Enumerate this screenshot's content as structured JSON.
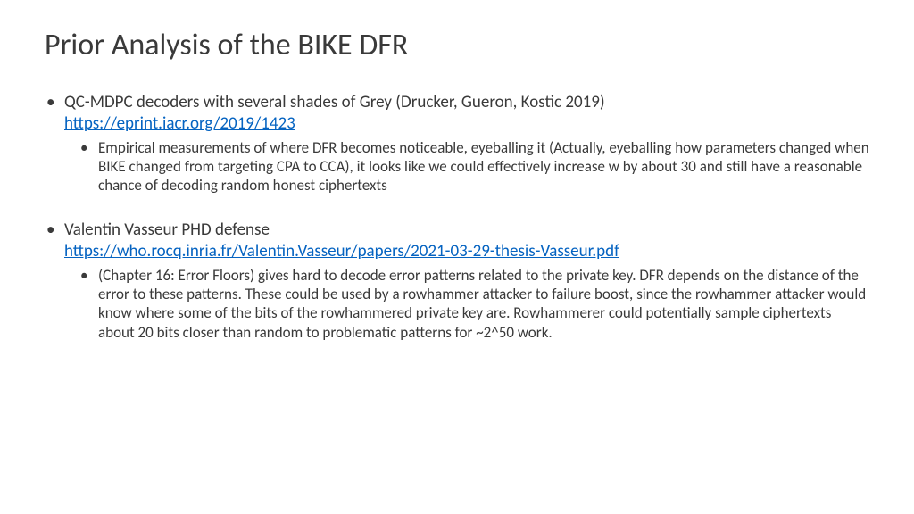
{
  "title": "Prior Analysis of the BIKE DFR",
  "bullets": [
    {
      "intro": "QC-MDPC decoders with several shades of Grey (Drucker, Gueron, Kostic 2019) ",
      "link": "https://eprint.iacr.org/2019/1423",
      "sub": "Empirical measurements of where DFR becomes noticeable, eyeballing it (Actually, eyeballing how parameters changed when BIKE changed from targeting CPA to CCA), it looks like we could effectively increase w by about 30 and still have a reasonable chance of decoding random honest ciphertexts"
    },
    {
      "intro": "Valentin Vasseur PHD defense ",
      "link": "https://who.rocq.inria.fr/Valentin.Vasseur/papers/2021-03-29-thesis-Vasseur.pdf",
      "sub": "(Chapter 16: Error Floors) gives hard to decode error patterns related to the private key. DFR depends on the distance of the error to these patterns. These could be used by a rowhammer attacker to failure boost, since the rowhammer attacker would know where some of the bits of the rowhammered private key are. Rowhammerer could potentially sample ciphertexts about 20 bits closer than random to problematic patterns for ~2^50 work."
    }
  ],
  "link_color": "#0563c1",
  "text_color": "#3a3a3a"
}
